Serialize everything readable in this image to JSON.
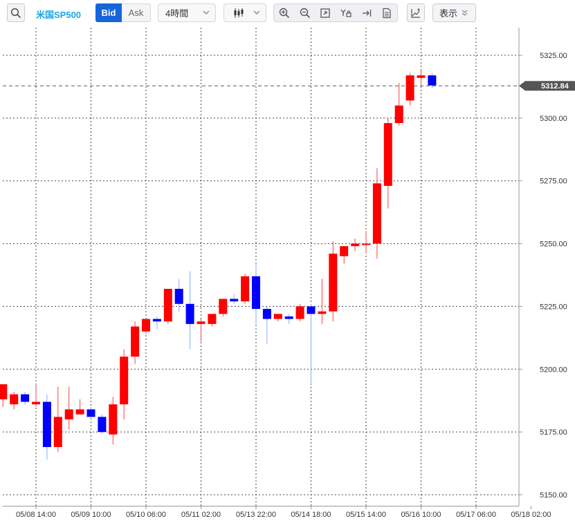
{
  "toolbar": {
    "search_icon": "search-icon",
    "symbol": "米国SP500",
    "bid_label": "Bid",
    "ask_label": "Ask",
    "timeframe": "4時間",
    "chart_type_icon": "candlestick-icon",
    "tools": [
      "zoom-in-icon",
      "zoom-out-icon",
      "fit-icon",
      "lock-price-icon",
      "jump-latest-icon",
      "document-icon"
    ],
    "indicator_icon": "add-indicator-icon",
    "display_label": "表示"
  },
  "colors": {
    "up": "#ff0000",
    "down": "#0000ff",
    "grid": "#444444",
    "price_tag": "#555555"
  },
  "chart_data": {
    "type": "candlestick",
    "title": "",
    "xlabel": "",
    "ylabel": "",
    "ylim": [
      5147,
      5340
    ],
    "y_ticks": [
      5150,
      5175,
      5200,
      5225,
      5250,
      5275,
      5300,
      5325
    ],
    "y_tick_labels": [
      "5150.00",
      "5175.00",
      "5200.00",
      "5225.00",
      "5250.00",
      "5275.00",
      "5300.00",
      "5325.00"
    ],
    "x_tick_labels": [
      "05/08 14:00",
      "05/09 10:00",
      "05/10 06:00",
      "05/11 02:00",
      "05/13 22:00",
      "05/14 18:00",
      "05/15 14:00",
      "05/16 10:00",
      "05/17 06:00",
      "05/18 02:00"
    ],
    "x_tick_slots": [
      3,
      8,
      13,
      18,
      23,
      28,
      33,
      38,
      43,
      48
    ],
    "grid": true,
    "current_price": 5312.84,
    "current_price_label": "5312.84",
    "candles": [
      {
        "slot": 0,
        "o": 5188.0,
        "h": 5194.0,
        "l": 5185.0,
        "c": 5194.0
      },
      {
        "slot": 1,
        "o": 5186.0,
        "h": 5191.0,
        "l": 5184.0,
        "c": 5190.0
      },
      {
        "slot": 2,
        "o": 5190.0,
        "h": 5191.0,
        "l": 5186.0,
        "c": 5187.0
      },
      {
        "slot": 3,
        "o": 5186.0,
        "h": 5194.0,
        "l": 5185.0,
        "c": 5187.0
      },
      {
        "slot": 4,
        "o": 5187.0,
        "h": 5190.0,
        "l": 5164.0,
        "c": 5169.0
      },
      {
        "slot": 5,
        "o": 5169.0,
        "h": 5193.0,
        "l": 5167.0,
        "c": 5181.0
      },
      {
        "slot": 6,
        "o": 5180.0,
        "h": 5193.0,
        "l": 5176.0,
        "c": 5184.0
      },
      {
        "slot": 7,
        "o": 5182.0,
        "h": 5188.0,
        "l": 5182.0,
        "c": 5184.0
      },
      {
        "slot": 8,
        "o": 5184.0,
        "h": 5185.0,
        "l": 5181.0,
        "c": 5181.0
      },
      {
        "slot": 9,
        "o": 5181.0,
        "h": 5182.0,
        "l": 5174.0,
        "c": 5175.0
      },
      {
        "slot": 10,
        "o": 5174.0,
        "h": 5189.0,
        "l": 5170.0,
        "c": 5186.0
      },
      {
        "slot": 11,
        "o": 5186.0,
        "h": 5208.0,
        "l": 5180.0,
        "c": 5205.0
      },
      {
        "slot": 12,
        "o": 5205.0,
        "h": 5219.0,
        "l": 5202.0,
        "c": 5217.0
      },
      {
        "slot": 13,
        "o": 5215.0,
        "h": 5220.0,
        "l": 5214.0,
        "c": 5220.0
      },
      {
        "slot": 14,
        "o": 5220.0,
        "h": 5221.0,
        "l": 5216.0,
        "c": 5219.0
      },
      {
        "slot": 15,
        "o": 5219.0,
        "h": 5232.0,
        "l": 5218.0,
        "c": 5232.0
      },
      {
        "slot": 16,
        "o": 5232.0,
        "h": 5236.0,
        "l": 5223.0,
        "c": 5226.0
      },
      {
        "slot": 17,
        "o": 5226.0,
        "h": 5239.0,
        "l": 5208.0,
        "c": 5218.0
      },
      {
        "slot": 18,
        "o": 5218.0,
        "h": 5220.0,
        "l": 5211.0,
        "c": 5219.0
      },
      {
        "slot": 19,
        "o": 5218.0,
        "h": 5222.0,
        "l": 5217.0,
        "c": 5222.0
      },
      {
        "slot": 20,
        "o": 5222.0,
        "h": 5228.0,
        "l": 5221.0,
        "c": 5228.0
      },
      {
        "slot": 21,
        "o": 5228.0,
        "h": 5230.0,
        "l": 5226.0,
        "c": 5227.0
      },
      {
        "slot": 22,
        "o": 5227.0,
        "h": 5238.0,
        "l": 5226.0,
        "c": 5237.0
      },
      {
        "slot": 23,
        "o": 5237.0,
        "h": 5242.0,
        "l": 5218.0,
        "c": 5224.0
      },
      {
        "slot": 24,
        "o": 5224.0,
        "h": 5225.0,
        "l": 5210.0,
        "c": 5220.0
      },
      {
        "slot": 25,
        "o": 5220.0,
        "h": 5222.0,
        "l": 5219.0,
        "c": 5222.0
      },
      {
        "slot": 26,
        "o": 5221.0,
        "h": 5222.0,
        "l": 5218.0,
        "c": 5220.0
      },
      {
        "slot": 27,
        "o": 5220.0,
        "h": 5226.0,
        "l": 5219.0,
        "c": 5225.0
      },
      {
        "slot": 28,
        "o": 5225.0,
        "h": 5226.0,
        "l": 5194.0,
        "c": 5222.0
      },
      {
        "slot": 29,
        "o": 5222.0,
        "h": 5236.0,
        "l": 5218.0,
        "c": 5223.0
      },
      {
        "slot": 30,
        "o": 5223.0,
        "h": 5251.0,
        "l": 5219.0,
        "c": 5246.0
      },
      {
        "slot": 31,
        "o": 5245.0,
        "h": 5249.0,
        "l": 5242.0,
        "c": 5249.0
      },
      {
        "slot": 32,
        "o": 5249.0,
        "h": 5252.0,
        "l": 5247.0,
        "c": 5250.0
      },
      {
        "slot": 33,
        "o": 5250.0,
        "h": 5255.0,
        "l": 5246.0,
        "c": 5250.0
      },
      {
        "slot": 34,
        "o": 5250.0,
        "h": 5280.0,
        "l": 5244.0,
        "c": 5274.0
      },
      {
        "slot": 35,
        "o": 5273.0,
        "h": 5300.0,
        "l": 5264.0,
        "c": 5298.0
      },
      {
        "slot": 36,
        "o": 5298.0,
        "h": 5314.0,
        "l": 5297.0,
        "c": 5305.0
      },
      {
        "slot": 37,
        "o": 5307.0,
        "h": 5318.0,
        "l": 5305.0,
        "c": 5317.0
      },
      {
        "slot": 38,
        "o": 5316.0,
        "h": 5319.0,
        "l": 5313.0,
        "c": 5317.0
      },
      {
        "slot": 39,
        "o": 5317.0,
        "h": 5318.0,
        "l": 5312.0,
        "c": 5313.0
      }
    ]
  }
}
